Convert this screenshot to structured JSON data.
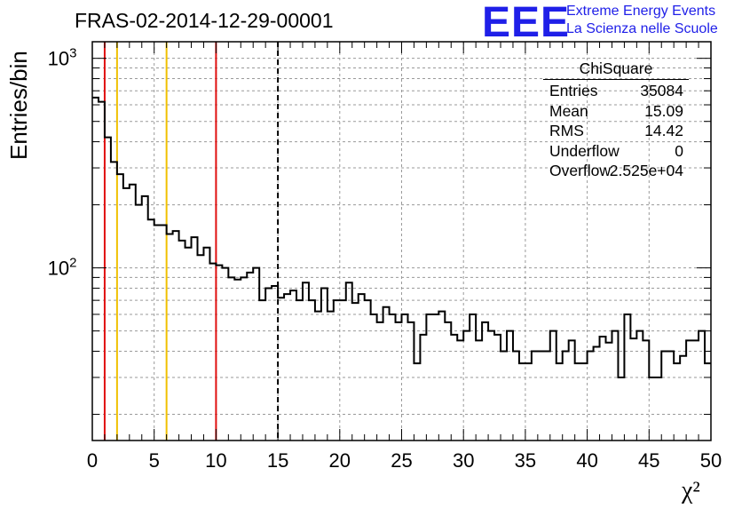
{
  "title": "FRAS-02-2014-12-29-00001",
  "logo": {
    "mark": "EEE",
    "line1": "Extreme Energy Events",
    "line2": "La Scienza nelle Scuole",
    "color": "#1f1fe8"
  },
  "stats": {
    "name": "ChiSquare",
    "rows": [
      {
        "key": "Entries",
        "value": "35084"
      },
      {
        "key": "Mean",
        "value": "15.09"
      },
      {
        "key": "RMS",
        "value": "14.42"
      },
      {
        "key": "Underflow",
        "value": "0"
      },
      {
        "key": "Overflow",
        "value": "2.525e+04"
      }
    ]
  },
  "chart_data": {
    "type": "histogram",
    "title": "FRAS-02-2014-12-29-00001",
    "xlabel": "χ²",
    "ylabel": "Entries/bin",
    "xlim": [
      0,
      50
    ],
    "ylim": [
      15,
      1200
    ],
    "yscale": "log",
    "grid": true,
    "xticks": [
      "0",
      "5",
      "10",
      "15",
      "20",
      "25",
      "30",
      "35",
      "40",
      "45",
      "50"
    ],
    "bin_width": 0.5,
    "values": [
      650,
      620,
      420,
      320,
      280,
      240,
      250,
      200,
      220,
      170,
      160,
      160,
      145,
      150,
      135,
      125,
      140,
      115,
      125,
      105,
      103,
      100,
      90,
      88,
      90,
      95,
      100,
      70,
      80,
      82,
      72,
      75,
      78,
      70,
      85,
      70,
      62,
      80,
      62,
      70,
      70,
      85,
      68,
      75,
      70,
      60,
      55,
      65,
      60,
      55,
      60,
      55,
      35,
      48,
      60,
      60,
      62,
      55,
      48,
      45,
      50,
      60,
      45,
      55,
      50,
      48,
      40,
      50,
      40,
      35,
      35,
      40,
      40,
      40,
      50,
      35,
      40,
      45,
      35,
      35,
      40,
      42,
      47,
      44,
      50,
      30,
      60,
      46,
      50,
      45,
      30,
      30,
      40,
      40,
      35,
      38,
      45,
      45,
      50,
      35
    ],
    "vlines": [
      {
        "x": 1,
        "color": "#e01010",
        "style": "solid"
      },
      {
        "x": 2,
        "color": "#f0c000",
        "style": "solid"
      },
      {
        "x": 6,
        "color": "#f0c000",
        "style": "solid"
      },
      {
        "x": 10,
        "color": "#e01010",
        "style": "solid"
      },
      {
        "x": 15,
        "color": "#000000",
        "style": "dashed"
      }
    ]
  }
}
